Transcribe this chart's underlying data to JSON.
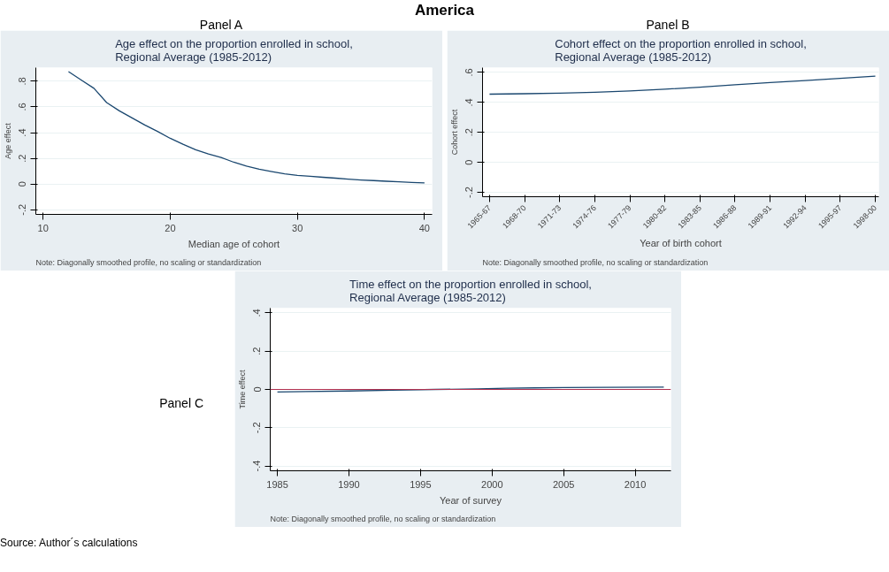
{
  "chart_data": [
    {
      "type": "line",
      "title": "Age effect on the proportion enrolled in school,\nRegional Average (1985-2012)",
      "xlabel": "Median age of cohort",
      "ylabel": "Age effect",
      "annotations": [
        "Panel A",
        "Note: Diagonally smoothed profile, no scaling or standardization",
        "America"
      ],
      "x": [
        12,
        13,
        14,
        15,
        16,
        17,
        18,
        19,
        20,
        21,
        22,
        23,
        24,
        25,
        26,
        27,
        28,
        29,
        30,
        31,
        32,
        33,
        34,
        35,
        36,
        37,
        38,
        39,
        40
      ],
      "series": [
        {
          "color": "#1a476f",
          "values": [
            0.875,
            0.81,
            0.745,
            0.634,
            0.57,
            0.515,
            0.46,
            0.41,
            0.356,
            0.31,
            0.267,
            0.234,
            0.207,
            0.17,
            0.14,
            0.115,
            0.097,
            0.08,
            0.068,
            0.06,
            0.053,
            0.046,
            0.039,
            0.032,
            0.027,
            0.022,
            0.017,
            0.013,
            0.009
          ]
        }
      ],
      "xlim": [
        9.43,
        40.6
      ],
      "ylim": [
        -0.236,
        0.906
      ],
      "xticks": [
        10,
        20,
        30,
        40
      ],
      "yticks": [
        {
          "value": -0.2,
          "label": "-.2"
        },
        {
          "value": 0,
          "label": "0"
        },
        {
          "value": 0.2,
          "label": ".2"
        },
        {
          "value": 0.4,
          "label": ".4"
        },
        {
          "value": 0.6,
          "label": ".6"
        },
        {
          "value": 0.8,
          "label": ".8"
        }
      ],
      "grid": "y"
    },
    {
      "type": "line",
      "title": "Cohort effect on the proportion enrolled in school,\nRegional Average (1985-2012)",
      "xlabel": "Year of birth cohort",
      "ylabel": "Cohort effect",
      "annotations": [
        "Panel B",
        "Note: Diagonally smoothed profile, no scaling or standardization"
      ],
      "categories": [
        "1965-67",
        "1968-70",
        "1971-73",
        "1974-76",
        "1977-79",
        "1980-82",
        "1983-85",
        "1986-88",
        "1989-91",
        "1992-94",
        "1995-97",
        "1998-00"
      ],
      "series": [
        {
          "color": "#1a476f",
          "values": [
            0.455,
            0.458,
            0.462,
            0.468,
            0.476,
            0.488,
            0.502,
            0.518,
            0.532,
            0.546,
            0.56,
            0.575
          ]
        }
      ],
      "ylim": [
        -0.229,
        0.632
      ],
      "yticks": [
        {
          "value": -0.2,
          "label": "-.2"
        },
        {
          "value": 0,
          "label": "0"
        },
        {
          "value": 0.2,
          "label": ".2"
        },
        {
          "value": 0.4,
          "label": ".4"
        },
        {
          "value": 0.6,
          "label": ".6"
        }
      ],
      "grid": "y"
    },
    {
      "type": "line",
      "title": "Time effect on the proportion enrolled in school,\nRegional Average (1985-2012)",
      "xlabel": "Year of survey",
      "ylabel": "Time effect",
      "annotations": [
        "Panel C",
        "Note: Diagonally smoothed profile, no scaling or standardization",
        "Source: Author´s calculations"
      ],
      "x": [
        1985,
        1987,
        1990,
        1993,
        1996,
        1999,
        2001,
        2003,
        2005,
        2008,
        2012
      ],
      "series": [
        {
          "color": "#1a476f",
          "values": [
            -0.013,
            -0.011,
            -0.008,
            -0.004,
            0.0,
            0.003,
            0.006,
            0.008,
            0.01,
            0.011,
            0.012
          ]
        }
      ],
      "ref_lines": [
        {
          "axis": "y",
          "value": 0,
          "color": "#b03050"
        }
      ],
      "xlim": [
        1984.5,
        2012.5
      ],
      "ylim": [
        -0.425,
        0.425
      ],
      "xticks": [
        1985,
        1990,
        1995,
        2000,
        2005,
        2010
      ],
      "yticks": [
        {
          "value": -0.4,
          "label": "-.4"
        },
        {
          "value": -0.2,
          "label": "-.2"
        },
        {
          "value": 0,
          "label": "0"
        },
        {
          "value": 0.2,
          "label": ".2"
        },
        {
          "value": 0.4,
          "label": ".4"
        }
      ],
      "grid": "y"
    }
  ]
}
